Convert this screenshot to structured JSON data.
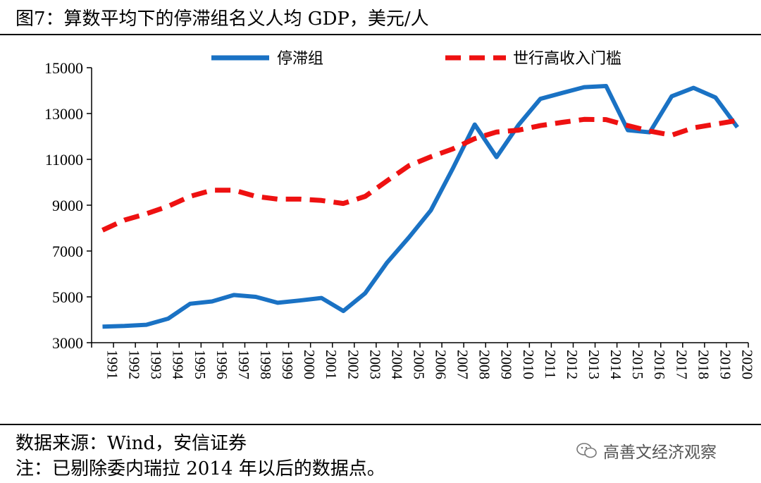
{
  "title": "图7：算数平均下的停滞组名义人均 GDP，美元/人",
  "footer": {
    "source": "数据来源：Wind，安信证券",
    "note": "注：已剔除委内瑞拉 2014 年以后的数据点。",
    "watermark": "高善文经济观察"
  },
  "colors": {
    "stagnant": "#1a72c4",
    "threshold": "#ee1111",
    "axis": "#000000"
  },
  "icons": {
    "watermark": "wechat-icon"
  },
  "chart_data": {
    "type": "line",
    "title": "",
    "xlabel": "",
    "ylabel": "",
    "ylim": [
      3000,
      15000
    ],
    "yticks": [
      3000,
      5000,
      7000,
      9000,
      11000,
      13000,
      15000
    ],
    "x": [
      "1991",
      "1992",
      "1993",
      "1994",
      "1995",
      "1996",
      "1997",
      "1998",
      "1999",
      "2000",
      "2001",
      "2002",
      "2003",
      "2004",
      "2005",
      "2006",
      "2007",
      "2008",
      "2009",
      "2010",
      "2011",
      "2012",
      "2013",
      "2014",
      "2015",
      "2016",
      "2017",
      "2018",
      "2019",
      "2020"
    ],
    "series": [
      {
        "name": "停滞组",
        "style": "solid",
        "values": [
          3700,
          3730,
          3780,
          4050,
          4700,
          4800,
          5080,
          5000,
          4740,
          4840,
          4950,
          4380,
          5160,
          6500,
          7600,
          8780,
          10600,
          12520,
          11100,
          12500,
          13640,
          13900,
          14150,
          14200,
          12270,
          12180,
          13750,
          14120,
          13700,
          12400
        ]
      },
      {
        "name": "世行高收入门槛",
        "style": "dashed",
        "values": [
          7911,
          8350,
          8626,
          8955,
          9385,
          9655,
          9655,
          9385,
          9265,
          9265,
          9205,
          9075,
          9385,
          10065,
          10725,
          11115,
          11455,
          11905,
          12195,
          12275,
          12475,
          12615,
          12745,
          12735,
          12475,
          12235,
          12055,
          12375,
          12535,
          12695
        ]
      }
    ],
    "legend": "top"
  }
}
